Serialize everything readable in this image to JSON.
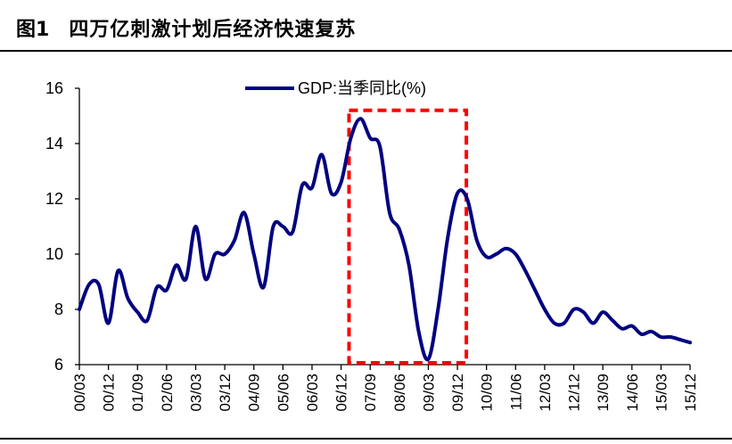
{
  "figure": {
    "label": "图1",
    "title": "四万亿刺激计划后经济快速复苏"
  },
  "colors": {
    "series": "#000080",
    "highlight": "#ff0000",
    "axis": "#000000"
  },
  "chart_data": {
    "type": "line",
    "title": "四万亿刺激计划后经济快速复苏",
    "xlabel": "",
    "ylabel": "",
    "ylim": [
      6,
      16
    ],
    "yticks": [
      6,
      8,
      10,
      12,
      14,
      16
    ],
    "grid": false,
    "legend_position": "top-center",
    "series": [
      {
        "name": "GDP:当季同比(%)",
        "x": [
          "00/03",
          "00/06",
          "00/09",
          "00/12",
          "01/03",
          "01/06",
          "01/09",
          "01/12",
          "02/03",
          "02/06",
          "02/09",
          "02/12",
          "03/03",
          "03/06",
          "03/09",
          "03/12",
          "04/03",
          "04/06",
          "04/09",
          "04/12",
          "05/03",
          "05/06",
          "05/09",
          "05/12",
          "06/03",
          "06/06",
          "06/09",
          "06/12",
          "07/03",
          "07/06",
          "07/09",
          "07/12",
          "08/03",
          "08/06",
          "08/09",
          "08/12",
          "09/03",
          "09/06",
          "09/09",
          "09/12",
          "10/03",
          "10/06",
          "10/09",
          "10/12",
          "11/03",
          "11/06",
          "11/09",
          "11/12",
          "12/03",
          "12/06",
          "12/09",
          "12/12",
          "13/03",
          "13/06",
          "13/09",
          "13/12",
          "14/03",
          "14/06",
          "14/09",
          "14/12",
          "15/03",
          "15/06",
          "15/09",
          "15/12"
        ],
        "values": [
          8.0,
          8.9,
          8.9,
          7.5,
          9.4,
          8.4,
          7.9,
          7.6,
          8.8,
          8.7,
          9.6,
          9.1,
          11.0,
          9.1,
          10.0,
          10.0,
          10.5,
          11.5,
          10.0,
          8.8,
          11.0,
          11.0,
          10.8,
          12.5,
          12.4,
          13.6,
          12.2,
          12.6,
          14.2,
          14.9,
          14.2,
          13.9,
          11.5,
          10.9,
          9.6,
          7.2,
          6.2,
          8.0,
          10.6,
          12.2,
          12.0,
          10.5,
          9.9,
          10.0,
          10.2,
          10.0,
          9.4,
          8.7,
          8.0,
          7.5,
          7.5,
          8.0,
          7.9,
          7.5,
          7.9,
          7.6,
          7.3,
          7.4,
          7.1,
          7.2,
          7.0,
          7.0,
          6.9,
          6.8
        ]
      }
    ],
    "xtick_labels": [
      "00/03",
      "00/12",
      "01/09",
      "02/06",
      "03/03",
      "03/12",
      "04/09",
      "05/06",
      "06/03",
      "06/12",
      "07/09",
      "08/06",
      "09/03",
      "09/12",
      "10/09",
      "11/06",
      "12/03",
      "12/12",
      "13/09",
      "14/06",
      "15/03",
      "15/12"
    ],
    "highlight_box": {
      "from": "07/03",
      "to": "09/12",
      "ymin": 6,
      "ymax": 15.2
    }
  }
}
